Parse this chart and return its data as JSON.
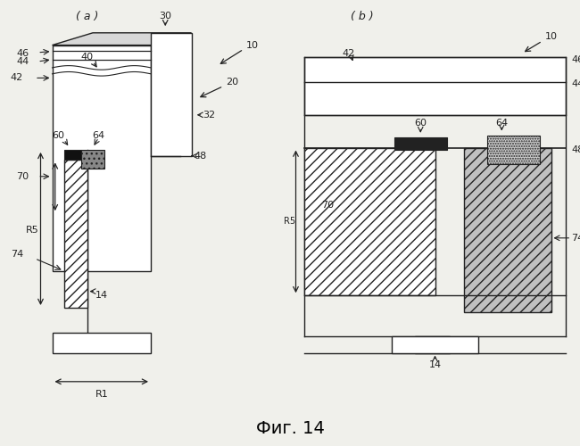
{
  "fig_width": 6.5,
  "fig_height": 5.0,
  "dpi": 100,
  "bg_color": "#f0f0eb",
  "panel_bg": "#ffffff",
  "title": "Фиг. 14",
  "label_a": "( a )",
  "label_b": "( b )"
}
